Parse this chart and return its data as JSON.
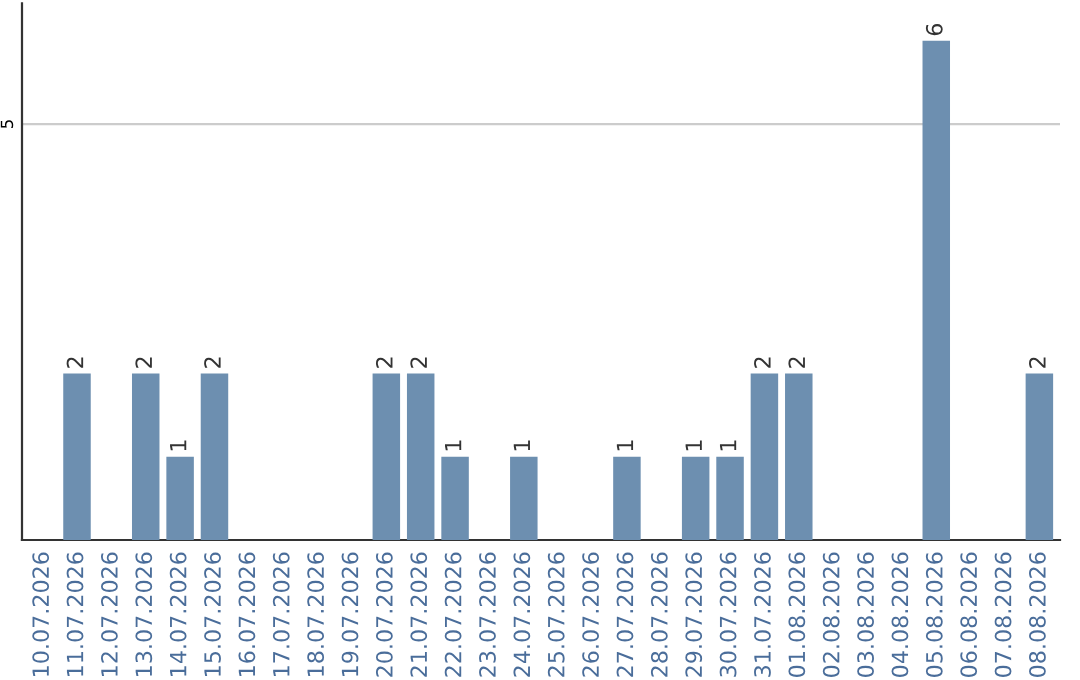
{
  "chart_data": {
    "type": "bar",
    "categories": [
      "10.07.2026",
      "11.07.2026",
      "12.07.2026",
      "13.07.2026",
      "14.07.2026",
      "15.07.2026",
      "16.07.2026",
      "17.07.2026",
      "18.07.2026",
      "19.07.2026",
      "20.07.2026",
      "21.07.2026",
      "22.07.2026",
      "23.07.2026",
      "24.07.2026",
      "25.07.2026",
      "26.07.2026",
      "27.07.2026",
      "28.07.2026",
      "29.07.2026",
      "30.07.2026",
      "31.07.2026",
      "01.08.2026",
      "02.08.2026",
      "03.08.2026",
      "04.08.2026",
      "05.08.2026",
      "06.08.2026",
      "07.08.2026",
      "08.08.2026"
    ],
    "values": [
      0,
      2,
      0,
      2,
      1,
      2,
      0,
      0,
      0,
      0,
      2,
      2,
      1,
      0,
      1,
      0,
      0,
      1,
      0,
      1,
      1,
      2,
      2,
      0,
      0,
      0,
      6,
      0,
      0,
      2
    ],
    "value_labels": [
      null,
      "2",
      null,
      "2",
      "1",
      "2",
      null,
      null,
      null,
      null,
      "2",
      "2",
      "1",
      null,
      "1",
      null,
      null,
      "1",
      null,
      "1",
      "1",
      "2",
      "2",
      null,
      null,
      null,
      "6",
      null,
      null,
      "2"
    ],
    "color": "#6d8fb0",
    "ylim": [
      0,
      6.45
    ],
    "yticks": [
      5
    ],
    "grid": "y"
  }
}
